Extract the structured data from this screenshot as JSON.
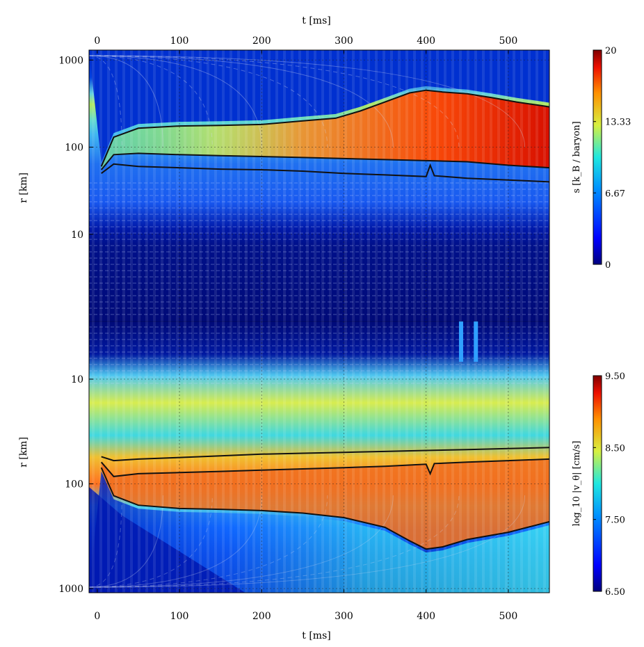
{
  "chart_data": {
    "type": "heatmap",
    "x_axis": {
      "label": "t [ms]",
      "range": [
        -10,
        550
      ],
      "ticks": [
        0,
        100,
        200,
        300,
        400,
        500
      ]
    },
    "top_panel": {
      "quantity": "s [k_B / baryon]",
      "ylabel": "r [km]",
      "yscale": "log",
      "yrange": [
        1,
        1300
      ],
      "tick_labels": [
        "1000",
        "100",
        "10"
      ],
      "tick_values": [
        1000,
        100,
        10
      ],
      "colorbar": {
        "label": "s [k_B / baryon]",
        "range": [
          0,
          20
        ],
        "tick_labels": [
          "20",
          "13.33",
          "6.67",
          "0"
        ],
        "tick_values": [
          20,
          13.33,
          6.67,
          0
        ]
      },
      "contours": [
        {
          "t": [
            5,
            20,
            50,
            100,
            150,
            200,
            250,
            290,
            320,
            350,
            380,
            400,
            420,
            450,
            480,
            510,
            540,
            550
          ],
          "r": [
            60,
            130,
            165,
            175,
            178,
            182,
            200,
            215,
            260,
            330,
            420,
            450,
            430,
            410,
            370,
            330,
            300,
            290
          ]
        },
        {
          "t": [
            5,
            20,
            50,
            100,
            150,
            200,
            250,
            300,
            350,
            400,
            450,
            500,
            550
          ],
          "r": [
            55,
            82,
            85,
            82,
            80,
            78,
            76,
            74,
            72,
            70,
            68,
            62,
            58
          ]
        },
        {
          "t": [
            5,
            20,
            50,
            100,
            150,
            200,
            250,
            300,
            350,
            400,
            405,
            410,
            450,
            500,
            550
          ],
          "r": [
            50,
            64,
            60,
            58,
            56,
            55,
            53,
            50,
            48,
            46,
            62,
            47,
            44,
            42,
            40
          ]
        }
      ]
    },
    "bottom_panel": {
      "quantity": "log_10 |v_θ| [cm/s]",
      "ylabel": "r [km]",
      "yscale": "log",
      "yrange": [
        1000,
        10
      ],
      "tick_labels": [
        "10",
        "100",
        "1000"
      ],
      "tick_values": [
        10,
        100,
        1000
      ],
      "colorbar": {
        "label": "log_10 |v_θ| [cm/s]",
        "range": [
          6.5,
          9.5
        ],
        "tick_labels": [
          "9.50",
          "8.50",
          "7.50",
          "6.50"
        ],
        "tick_values": [
          9.5,
          8.5,
          7.5,
          6.5
        ]
      },
      "contours": [
        {
          "t": [
            5,
            20,
            50,
            100,
            150,
            200,
            250,
            300,
            350,
            400,
            450,
            500,
            550
          ],
          "r": [
            55,
            60,
            58,
            56,
            54,
            52,
            51,
            50,
            49,
            48,
            47,
            46,
            45
          ]
        },
        {
          "t": [
            5,
            20,
            50,
            100,
            150,
            200,
            250,
            300,
            350,
            400,
            405,
            410,
            450,
            500,
            550
          ],
          "r": [
            62,
            85,
            80,
            78,
            76,
            74,
            72,
            70,
            68,
            65,
            80,
            64,
            62,
            60,
            58
          ]
        },
        {
          "t": [
            5,
            20,
            50,
            100,
            150,
            200,
            250,
            300,
            350,
            380,
            400,
            420,
            450,
            500,
            550
          ],
          "r": [
            70,
            130,
            160,
            172,
            175,
            180,
            190,
            210,
            260,
            350,
            420,
            400,
            340,
            290,
            230
          ]
        }
      ]
    },
    "grid": true
  },
  "colors": {
    "low": "#00007f",
    "mid_low": "#0078ff",
    "mid": "#00e0e0",
    "mid_high": "#f0f020",
    "high": "#e83000",
    "max": "#7f0000",
    "contour": "#111111",
    "streamline": "#d0d8f0"
  },
  "icons": {
    "colorbar_top": "colorbar-jet",
    "colorbar_bottom": "colorbar-jet"
  }
}
